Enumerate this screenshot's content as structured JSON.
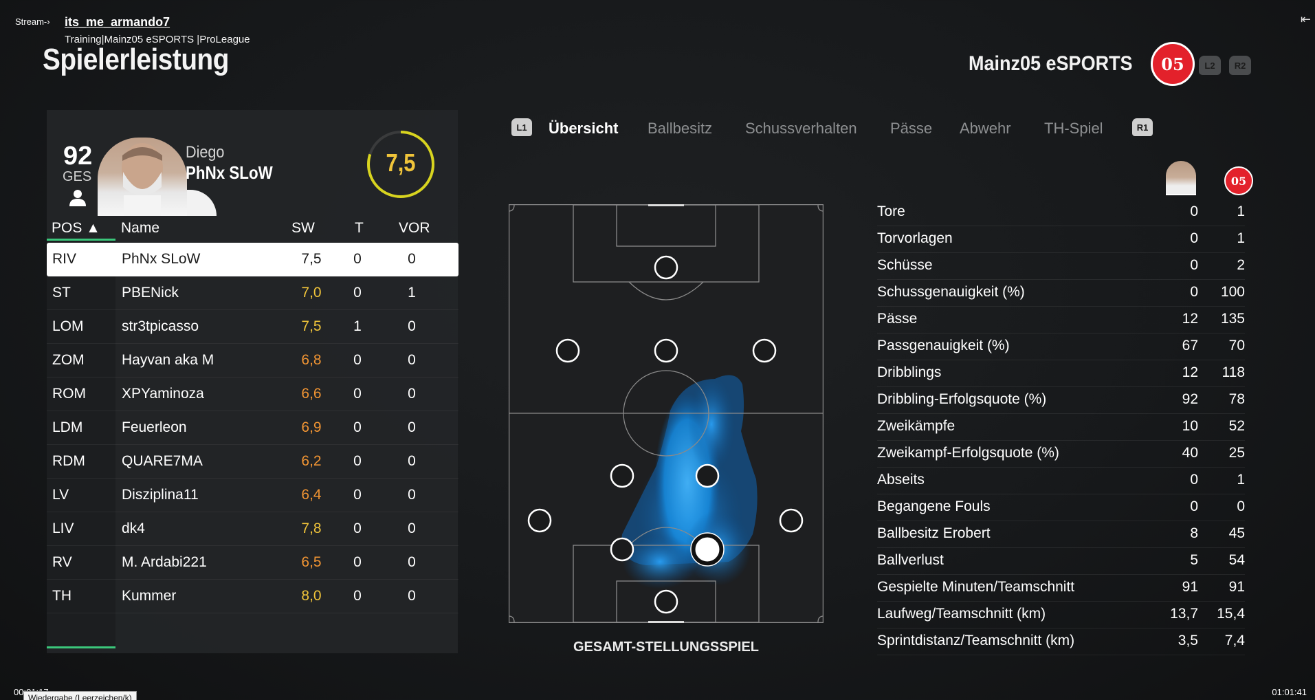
{
  "overlay": {
    "stream_label": "Stream-›",
    "channel": "its_me_armando7",
    "subtitle": "Training|Mainz05 eSPORTS |ProLeague",
    "back_icon": "arrow-left-icon",
    "time_left": "00:01:17",
    "time_right": "01:01:41",
    "tooltip": "Wiedergabe (Leerzeichen/k)"
  },
  "page": {
    "title": "Spielerleistung"
  },
  "team": {
    "name": "Mainz05 eSPORTS",
    "crest_text": "05",
    "l2_label": "L2",
    "r2_label": "R2",
    "accent": "#e3212b"
  },
  "player": {
    "overall": "92",
    "overall_label": "GES",
    "first_name": "Diego",
    "last_name": "PhNx SLoW",
    "match_rating": "7,5",
    "rating_color": "#f0c43a"
  },
  "table": {
    "headers": {
      "pos": "POS ▲",
      "name": "Name",
      "sw": "SW",
      "t": "T",
      "vor": "VOR"
    },
    "rows": [
      {
        "pos": "RIV",
        "name": "PhNx SLoW",
        "sw": "7,5",
        "t": "0",
        "vor": "0",
        "color": "#1a1a1a",
        "selected": true
      },
      {
        "pos": "ST",
        "name": "PBENick",
        "sw": "7,0",
        "t": "0",
        "vor": "1",
        "color": "#f0c43a"
      },
      {
        "pos": "LOM",
        "name": "str3tpicasso",
        "sw": "7,5",
        "t": "1",
        "vor": "0",
        "color": "#f0c43a"
      },
      {
        "pos": "ZOM",
        "name": "Hayvan aka M",
        "sw": "6,8",
        "t": "0",
        "vor": "0",
        "color": "#f09433"
      },
      {
        "pos": "ROM",
        "name": "XPYaminoza",
        "sw": "6,6",
        "t": "0",
        "vor": "0",
        "color": "#f09433"
      },
      {
        "pos": "LDM",
        "name": "Feuerleon",
        "sw": "6,9",
        "t": "0",
        "vor": "0",
        "color": "#f09433"
      },
      {
        "pos": "RDM",
        "name": "QUARE7MA",
        "sw": "6,2",
        "t": "0",
        "vor": "0",
        "color": "#f09433"
      },
      {
        "pos": "LV",
        "name": "Disziplina11",
        "sw": "6,4",
        "t": "0",
        "vor": "0",
        "color": "#f09433"
      },
      {
        "pos": "LIV",
        "name": "dk4",
        "sw": "7,8",
        "t": "0",
        "vor": "0",
        "color": "#f0c43a"
      },
      {
        "pos": "RV",
        "name": "M. Ardabi221",
        "sw": "6,5",
        "t": "0",
        "vor": "0",
        "color": "#f09433"
      },
      {
        "pos": "TH",
        "name": "Kummer",
        "sw": "8,0",
        "t": "0",
        "vor": "0",
        "color": "#f0c43a"
      }
    ]
  },
  "tabs": {
    "l1": "L1",
    "r1": "R1",
    "items": [
      "Übersicht",
      "Ballbesitz",
      "Schussverhalten",
      "Pässe",
      "Abwehr",
      "TH-Spiel"
    ]
  },
  "pitch": {
    "caption": "GESAMT-STELLUNGSSPIEL",
    "heat_color": "#1aa3ff"
  },
  "stats": [
    {
      "label": "Tore",
      "player": "0",
      "team": "1"
    },
    {
      "label": "Torvorlagen",
      "player": "0",
      "team": "1"
    },
    {
      "label": "Schüsse",
      "player": "0",
      "team": "2"
    },
    {
      "label": "Schussgenauigkeit (%)",
      "player": "0",
      "team": "100"
    },
    {
      "label": "Pässe",
      "player": "12",
      "team": "135"
    },
    {
      "label": "Passgenauigkeit (%)",
      "player": "67",
      "team": "70"
    },
    {
      "label": "Dribblings",
      "player": "12",
      "team": "118"
    },
    {
      "label": "Dribbling-Erfolgsquote (%)",
      "player": "92",
      "team": "78"
    },
    {
      "label": "Zweikämpfe",
      "player": "10",
      "team": "52"
    },
    {
      "label": "Zweikampf-Erfolgsquote (%)",
      "player": "40",
      "team": "25"
    },
    {
      "label": "Abseits",
      "player": "0",
      "team": "1"
    },
    {
      "label": "Begangene Fouls",
      "player": "0",
      "team": "0"
    },
    {
      "label": "Ballbesitz Erobert",
      "player": "8",
      "team": "45"
    },
    {
      "label": "Ballverlust",
      "player": "5",
      "team": "54"
    },
    {
      "label": "Gespielte Minuten/Teamschnitt",
      "player": "91",
      "team": "91"
    },
    {
      "label": "Laufweg/Teamschnitt (km)",
      "player": "13,7",
      "team": "15,4"
    },
    {
      "label": "Sprintdistanz/Teamschnitt (km)",
      "player": "3,5",
      "team": "7,4"
    }
  ]
}
